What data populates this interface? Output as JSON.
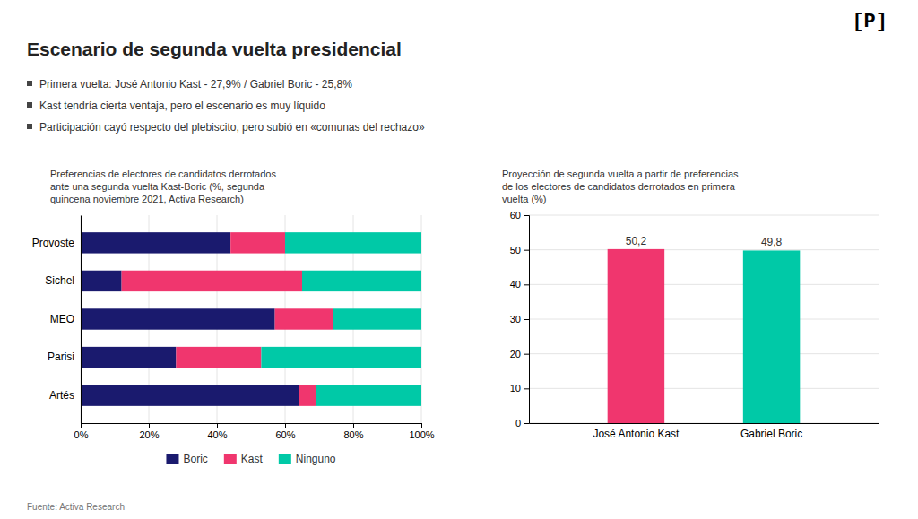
{
  "title": "Escenario de segunda vuelta presidencial",
  "logo": "[P]",
  "bullets": [
    "Primera vuelta: José Antonio Kast - 27,9% / Gabriel Boric - 25,8%",
    "Kast tendría cierta ventaja, pero el escenario es muy líquido",
    "Participación cayó respecto del plebiscito, pero subió en «comunas del rechazo»"
  ],
  "footer": "Fuente: Activa Research",
  "chart_data": [
    {
      "type": "bar",
      "title": "Preferencias de electores de candidatos derrotados\nante una segunda vuelta Kast-Boric (%, segunda\nquincena noviembre 2021, Activa Research)",
      "orientation": "horizontal",
      "stacked": true,
      "categories": [
        "Provoste",
        "Sichel",
        "MEO",
        "Parisi",
        "Artés"
      ],
      "series": [
        {
          "name": "Boric",
          "color": "#1a1a6e",
          "values": [
            44,
            12,
            57,
            28,
            64
          ]
        },
        {
          "name": "Kast",
          "color": "#f0366e",
          "values": [
            16,
            53,
            17,
            25,
            5
          ]
        },
        {
          "name": "Ninguno",
          "color": "#00c9a7",
          "values": [
            40,
            35,
            26,
            47,
            31
          ]
        }
      ],
      "xlim": [
        0,
        100
      ],
      "xticks": [
        {
          "value": 0,
          "label": "0%"
        },
        {
          "value": 20,
          "label": "20%"
        },
        {
          "value": 40,
          "label": "40%"
        },
        {
          "value": 60,
          "label": "60%"
        },
        {
          "value": 80,
          "label": "80%"
        },
        {
          "value": 100,
          "label": "100%"
        }
      ],
      "grid": true,
      "legend": "bottom"
    },
    {
      "type": "bar",
      "title": "Proyección de segunda vuelta a partir de preferencias\nde los electores de candidatos derrotados en primera\nvuelta (%)",
      "categories": [
        "José Antonio Kast",
        "Gabriel Boric"
      ],
      "values": [
        50.2,
        49.8
      ],
      "colors": [
        "#f0366e",
        "#00c9a7"
      ],
      "value_labels": [
        "50,2",
        "49,8"
      ],
      "data_labels": true,
      "ylim": [
        0,
        60
      ],
      "yticks": [
        0,
        10,
        20,
        30,
        40,
        50,
        60
      ],
      "grid": true
    }
  ]
}
